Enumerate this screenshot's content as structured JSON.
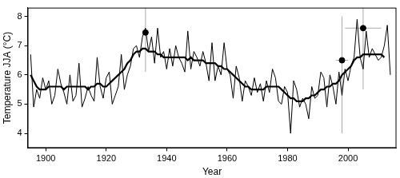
{
  "chart_data": {
    "type": "line",
    "x_label": "Year",
    "y_label": "Temperature JJA (°C)",
    "x": [
      1895,
      1896,
      1897,
      1898,
      1899,
      1900,
      1901,
      1902,
      1903,
      1904,
      1905,
      1906,
      1907,
      1908,
      1909,
      1910,
      1911,
      1912,
      1913,
      1914,
      1915,
      1916,
      1917,
      1918,
      1919,
      1920,
      1921,
      1922,
      1923,
      1924,
      1925,
      1926,
      1927,
      1928,
      1929,
      1930,
      1931,
      1932,
      1933,
      1934,
      1935,
      1936,
      1937,
      1938,
      1939,
      1940,
      1941,
      1942,
      1943,
      1944,
      1945,
      1946,
      1947,
      1948,
      1949,
      1950,
      1951,
      1952,
      1953,
      1954,
      1955,
      1956,
      1957,
      1958,
      1959,
      1960,
      1961,
      1962,
      1963,
      1964,
      1965,
      1966,
      1967,
      1968,
      1969,
      1970,
      1971,
      1972,
      1973,
      1974,
      1975,
      1976,
      1977,
      1978,
      1979,
      1980,
      1981,
      1982,
      1983,
      1984,
      1985,
      1986,
      1987,
      1988,
      1989,
      1990,
      1991,
      1992,
      1993,
      1994,
      1995,
      1996,
      1997,
      1998,
      1999,
      2000,
      2001,
      2002,
      2003,
      2004,
      2005,
      2006,
      2007,
      2008,
      2009,
      2010,
      2011,
      2012,
      2013,
      2014
    ],
    "series": [
      {
        "type": "line",
        "color": "#000000",
        "line_style": "solid",
        "values": [
          6.7,
          4.9,
          5.5,
          5.2,
          5.9,
          5.5,
          5.8,
          5.0,
          5.3,
          6.2,
          5.7,
          5.4,
          5.0,
          6.0,
          5.1,
          5.3,
          6.4,
          4.9,
          5.2,
          5.6,
          5.3,
          5.1,
          6.6,
          5.6,
          5.2,
          5.9,
          6.1,
          5.0,
          5.3,
          5.6,
          6.7,
          5.5,
          6.0,
          6.3,
          6.9,
          7.0,
          6.6,
          7.3,
          7.6,
          6.8,
          7.3,
          6.4,
          7.6,
          6.6,
          6.8,
          6.2,
          6.9,
          6.3,
          7.0,
          6.6,
          6.4,
          6.1,
          7.5,
          6.2,
          6.8,
          6.6,
          6.3,
          6.8,
          6.4,
          5.8,
          7.1,
          5.8,
          6.3,
          6.0,
          7.1,
          6.2,
          6.0,
          5.2,
          6.3,
          5.9,
          5.1,
          5.8,
          5.6,
          5.3,
          5.9,
          5.4,
          5.7,
          5.1,
          5.8,
          5.4,
          6.2,
          5.9,
          5.1,
          5.0,
          5.6,
          5.4,
          4.0,
          5.8,
          5.5,
          4.9,
          5.2,
          5.0,
          4.5,
          5.6,
          5.2,
          5.3,
          6.1,
          5.9,
          4.9,
          6.0,
          5.6,
          5.0,
          6.1,
          5.3,
          6.2,
          5.8,
          6.3,
          6.6,
          7.9,
          6.6,
          6.2,
          7.5,
          6.6,
          6.9,
          6.7,
          6.5,
          6.6,
          7.0,
          7.7,
          6.0
        ]
      },
      {
        "type": "line",
        "color": "#000000",
        "line_style": "solid",
        "values": [
          6.0,
          5.8,
          5.6,
          5.5,
          5.5,
          5.5,
          5.6,
          5.6,
          5.6,
          5.6,
          5.6,
          5.5,
          5.6,
          5.6,
          5.6,
          5.6,
          5.6,
          5.6,
          5.6,
          5.5,
          5.6,
          5.6,
          5.7,
          5.7,
          5.6,
          5.6,
          5.7,
          5.8,
          5.9,
          6.0,
          6.1,
          6.2,
          6.4,
          6.5,
          6.7,
          6.8,
          6.8,
          6.9,
          6.9,
          6.8,
          6.8,
          6.8,
          6.7,
          6.7,
          6.6,
          6.6,
          6.6,
          6.6,
          6.6,
          6.6,
          6.6,
          6.6,
          6.5,
          6.6,
          6.5,
          6.5,
          6.5,
          6.5,
          6.4,
          6.4,
          6.4,
          6.4,
          6.3,
          6.3,
          6.2,
          6.2,
          6.1,
          6.0,
          5.9,
          5.8,
          5.7,
          5.6,
          5.6,
          5.5,
          5.5,
          5.5,
          5.5,
          5.5,
          5.6,
          5.6,
          5.6,
          5.6,
          5.6,
          5.5,
          5.4,
          5.3,
          5.2,
          5.2,
          5.1,
          5.1,
          5.1,
          5.2,
          5.2,
          5.3,
          5.3,
          5.4,
          5.5,
          5.5,
          5.6,
          5.6,
          5.7,
          5.7,
          5.8,
          6.0,
          6.1,
          6.2,
          6.3,
          6.5,
          6.6,
          6.6,
          6.7,
          6.7,
          6.7,
          6.7,
          6.7,
          6.7,
          6.7,
          6.6,
          null,
          null
        ]
      },
      {
        "type": "scatter",
        "color": "#000000",
        "marker": "circle",
        "x": [
          1933,
          1998,
          2005
        ],
        "values": [
          7.45,
          6.5,
          7.6
        ],
        "error_y": {
          "low": [
            6.1,
            4.0,
            5.5
          ],
          "high": [
            8.3,
            8.0,
            8.3
          ]
        },
        "error_x": {
          "low": [
            1932,
            1996,
            1999
          ],
          "high": [
            1934,
            2000,
            2011
          ]
        }
      }
    ],
    "xlim": [
      1894,
      2016
    ],
    "xticks": [
      1900,
      1920,
      1940,
      1960,
      1980,
      2000
    ],
    "ylim": [
      3.5,
      8.3
    ],
    "yticks": [
      4,
      5,
      6,
      7,
      8
    ],
    "grid": false
  }
}
